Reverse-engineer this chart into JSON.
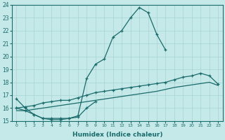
{
  "xlabel": "Humidex (Indice chaleur)",
  "xlim": [
    -0.5,
    23.5
  ],
  "ylim": [
    15,
    24
  ],
  "xticks": [
    0,
    1,
    2,
    3,
    4,
    5,
    6,
    7,
    8,
    9,
    10,
    11,
    12,
    13,
    14,
    15,
    16,
    17,
    18,
    19,
    20,
    21,
    22,
    23
  ],
  "yticks": [
    15,
    16,
    17,
    18,
    19,
    20,
    21,
    22,
    23,
    24
  ],
  "bg_color": "#c5e8e8",
  "line_color": "#1a6b6b",
  "grid_color": "#a8d4d4",
  "line1_y": [
    16.7,
    16.0,
    15.5,
    15.2,
    15.1,
    15.1,
    15.2,
    15.4,
    18.3,
    19.4,
    19.8,
    21.5,
    22.0,
    23.0,
    23.8,
    23.4,
    21.7,
    20.5,
    null,
    null,
    null,
    null,
    null,
    null
  ],
  "line2_y": [
    16.0,
    15.8,
    15.5,
    15.2,
    15.2,
    15.2,
    15.2,
    15.3,
    16.0,
    16.5,
    null,
    null,
    null,
    null,
    null,
    null,
    null,
    null,
    null,
    null,
    null,
    null,
    null,
    null
  ],
  "line3_y": [
    16.0,
    16.1,
    16.2,
    16.4,
    16.5,
    16.6,
    16.6,
    16.8,
    17.0,
    17.2,
    17.3,
    17.4,
    17.5,
    17.6,
    17.7,
    17.8,
    17.9,
    18.0,
    18.2,
    18.4,
    18.5,
    18.7,
    18.5,
    17.85
  ],
  "line4_y": [
    15.8,
    15.8,
    15.9,
    16.0,
    16.1,
    16.2,
    16.3,
    16.4,
    16.5,
    16.6,
    16.7,
    16.8,
    16.9,
    17.0,
    17.1,
    17.2,
    17.3,
    17.45,
    17.6,
    17.7,
    17.8,
    17.9,
    18.0,
    17.75
  ]
}
